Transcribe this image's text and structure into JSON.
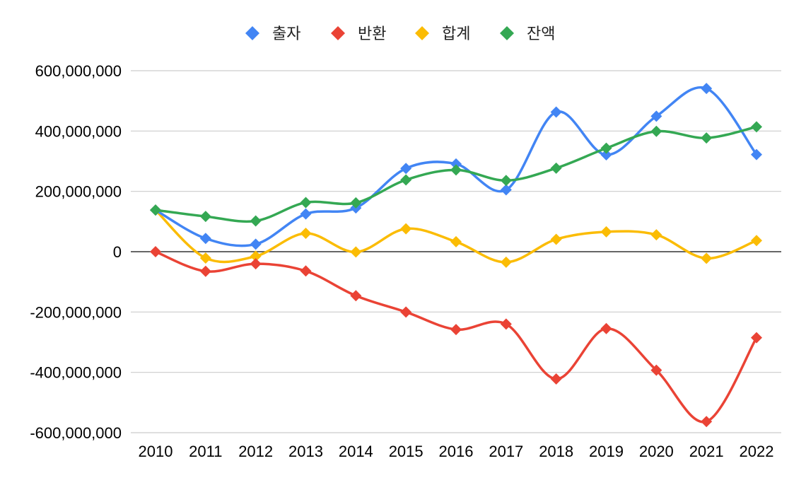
{
  "chart_data": {
    "type": "line",
    "smooth": true,
    "marker": "diamond",
    "x": [
      "2010",
      "2011",
      "2012",
      "2013",
      "2014",
      "2015",
      "2016",
      "2017",
      "2018",
      "2019",
      "2020",
      "2021",
      "2022"
    ],
    "ylim": [
      -600000000,
      600000000
    ],
    "yticks": [
      600000000,
      400000000,
      200000000,
      0,
      -200000000,
      -400000000,
      -600000000
    ],
    "ytick_labels": [
      "600,000,000",
      "400,000,000",
      "200,000,000",
      "0",
      "-200,000,000",
      "-400,000,000",
      "-600,000,000"
    ],
    "grid": true,
    "legend_position": "top-center",
    "series": [
      {
        "name": "출자",
        "color": "#4285f4",
        "values": [
          138000000,
          44000000,
          25000000,
          125000000,
          145000000,
          276000000,
          291000000,
          205000000,
          463000000,
          321000000,
          449000000,
          541000000,
          322000000
        ]
      },
      {
        "name": "반환",
        "color": "#ea4335",
        "values": [
          0,
          -65000000,
          -40000000,
          -64000000,
          -146000000,
          -200000000,
          -258000000,
          -240000000,
          -422000000,
          -255000000,
          -393000000,
          -563000000,
          -285000000
        ]
      },
      {
        "name": "합계",
        "color": "#fbbc04",
        "values": [
          138000000,
          -21000000,
          -15000000,
          61000000,
          -1000000,
          76000000,
          33000000,
          -35000000,
          41000000,
          66000000,
          56000000,
          -22000000,
          37000000
        ]
      },
      {
        "name": "잔액",
        "color": "#34a853",
        "values": [
          138000000,
          117000000,
          102000000,
          163000000,
          162000000,
          238000000,
          271000000,
          236000000,
          277000000,
          343000000,
          399000000,
          377000000,
          414000000
        ]
      }
    ]
  }
}
